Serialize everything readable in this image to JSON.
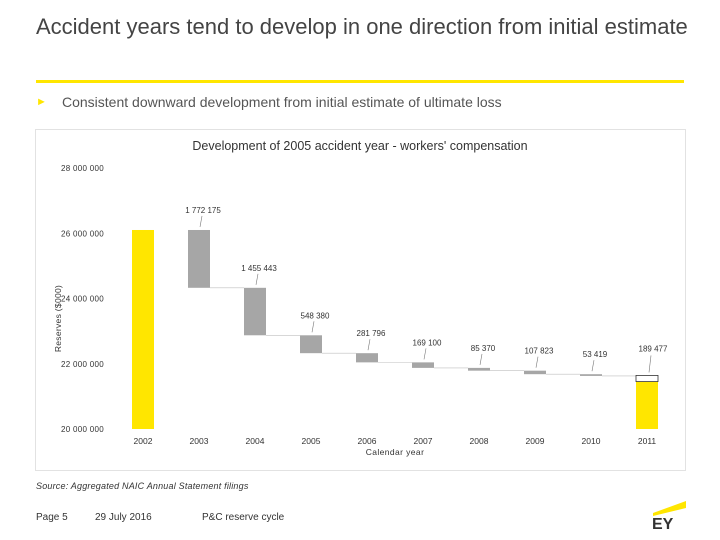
{
  "slide": {
    "title": "Accident years tend to develop in one direction from initial estimate",
    "bullet": "Consistent downward development from initial estimate of ultimate loss",
    "source": "Source: Aggregated NAIC Annual Statement filings",
    "page": "Page 5",
    "date": "29 July 2016",
    "footer_title": "P&C reserve cycle",
    "logo_text": "EY",
    "accent_color": "#ffe600",
    "bar_color": "#ffe600",
    "decline_color": "#a6a6a6"
  },
  "chart_data": {
    "type": "waterfall",
    "title": "Development of 2005 accident year - workers' compensation",
    "ylabel": "Reserves ($000)",
    "xlabel": "Calendar year",
    "ylim": [
      20000000,
      28000000
    ],
    "yticks": [
      20000000,
      22000000,
      24000000,
      26000000,
      28000000
    ],
    "ytick_labels": [
      "20 000 000",
      "22 000 000",
      "24 000 000",
      "26 000 000",
      "28 000 000"
    ],
    "categories": [
      "2002",
      "2003",
      "2004",
      "2005",
      "2006",
      "2007",
      "2008",
      "2009",
      "2010",
      "2011"
    ],
    "start_total": 26100000,
    "end_total": 21453000,
    "end_increase": 189477,
    "steps": [
      {
        "category": "2003",
        "value": 1772175,
        "label": "1 772 175"
      },
      {
        "category": "2004",
        "value": 1455443,
        "label": "1 455 443"
      },
      {
        "category": "2005",
        "value": 548380,
        "label": "548 380"
      },
      {
        "category": "2006",
        "value": 281796,
        "label": "281 796"
      },
      {
        "category": "2007",
        "value": 169100,
        "label": "169 100"
      },
      {
        "category": "2008",
        "value": 85370,
        "label": "85 370"
      },
      {
        "category": "2009",
        "value": 107823,
        "label": "107 823"
      },
      {
        "category": "2010",
        "value": 53419,
        "label": "53 419"
      }
    ],
    "end_increase_label": "189 477"
  }
}
